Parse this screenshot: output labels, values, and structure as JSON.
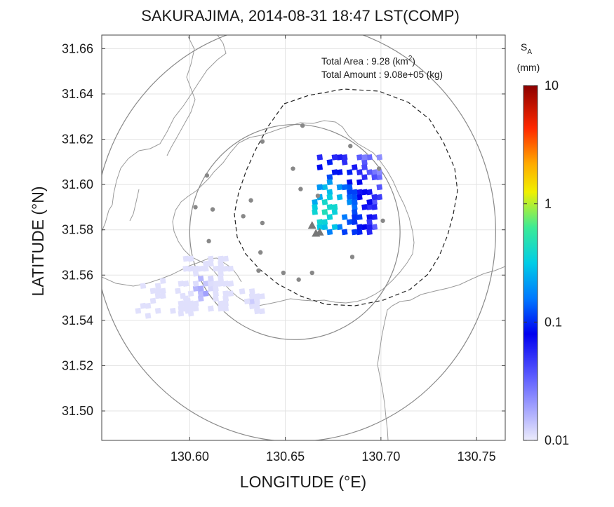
{
  "chart_data": {
    "type": "heatmap",
    "title": "SAKURAJIMA, 2014-08-31 18:47 LST(COMP)",
    "xlabel": "LONGITUDE (°E)",
    "ylabel": "LATITUDE (°N)",
    "xlim": [
      130.554,
      130.765
    ],
    "ylim": [
      31.487,
      31.666
    ],
    "xticks": [
      "130.60",
      "130.65",
      "130.70",
      "130.75"
    ],
    "xtick_values": [
      130.6,
      130.65,
      130.7,
      130.75
    ],
    "yticks": [
      "31.50",
      "31.52",
      "31.54",
      "31.56",
      "31.58",
      "31.60",
      "31.62",
      "31.64",
      "31.66"
    ],
    "ytick_values": [
      31.5,
      31.52,
      31.54,
      31.56,
      31.58,
      31.6,
      31.62,
      31.64,
      31.66
    ],
    "grid": true,
    "annotations": [
      {
        "label": "Total Area   : 9.28 (km",
        "sup": "2",
        "tail": ")"
      },
      {
        "label": "Total Amount : 9.08e+05 (kg)",
        "sup": "",
        "tail": ""
      }
    ],
    "colorbar": {
      "label_main": "S",
      "label_sub": "A",
      "unit": "(mm)",
      "scale": "log",
      "range": [
        0.01,
        10
      ],
      "ticks": [
        "0.01",
        "0.1",
        "1",
        "10"
      ],
      "tick_values": [
        0.01,
        0.1,
        1,
        10
      ]
    },
    "vents": [
      [
        130.664,
        31.582
      ],
      [
        130.666,
        31.5785
      ],
      [
        130.668,
        31.579
      ]
    ],
    "stations": [
      [
        130.659,
        31.626
      ],
      [
        130.638,
        31.619
      ],
      [
        130.684,
        31.617
      ],
      [
        130.654,
        31.607
      ],
      [
        130.658,
        31.598
      ],
      [
        130.609,
        31.604
      ],
      [
        130.699,
        31.607
      ],
      [
        130.603,
        31.59
      ],
      [
        130.612,
        31.589
      ],
      [
        130.628,
        31.586
      ],
      [
        130.638,
        31.583
      ],
      [
        130.632,
        31.593
      ],
      [
        130.667,
        31.595
      ],
      [
        130.701,
        31.584
      ],
      [
        130.61,
        31.575
      ],
      [
        130.637,
        31.57
      ],
      [
        130.685,
        31.568
      ],
      [
        130.636,
        31.562
      ],
      [
        130.649,
        31.561
      ],
      [
        130.664,
        31.561
      ],
      [
        130.657,
        31.558
      ]
    ],
    "rings": [
      {
        "center": [
          130.655,
          31.579
        ],
        "r_lon": 0.105,
        "r_lat": 0.0925
      },
      {
        "center": [
          130.655,
          31.579
        ],
        "r_lon": 0.055,
        "r_lat": 0.0475
      }
    ],
    "clusters": [
      {
        "lon": [
          130.664,
          130.697
        ],
        "lat": [
          31.578,
          31.612
        ],
        "peak": [
          130.67,
          31.588
        ],
        "peak_value": 0.6,
        "count": 110
      },
      {
        "lon": [
          130.594,
          130.62
        ],
        "lat": [
          31.542,
          31.567
        ],
        "peak": [
          130.605,
          31.553
        ],
        "peak_value": 0.025,
        "count": 95
      },
      {
        "lon": [
          130.626,
          130.636
        ],
        "lat": [
          31.543,
          31.551
        ],
        "peak": [
          130.632,
          31.547
        ],
        "peak_value": 0.018,
        "count": 16
      },
      {
        "lon": [
          130.569,
          130.602
        ],
        "lat": [
          31.541,
          31.556
        ],
        "peak": [
          130.588,
          31.546
        ],
        "peak_value": 0.02,
        "count": 24
      }
    ]
  }
}
